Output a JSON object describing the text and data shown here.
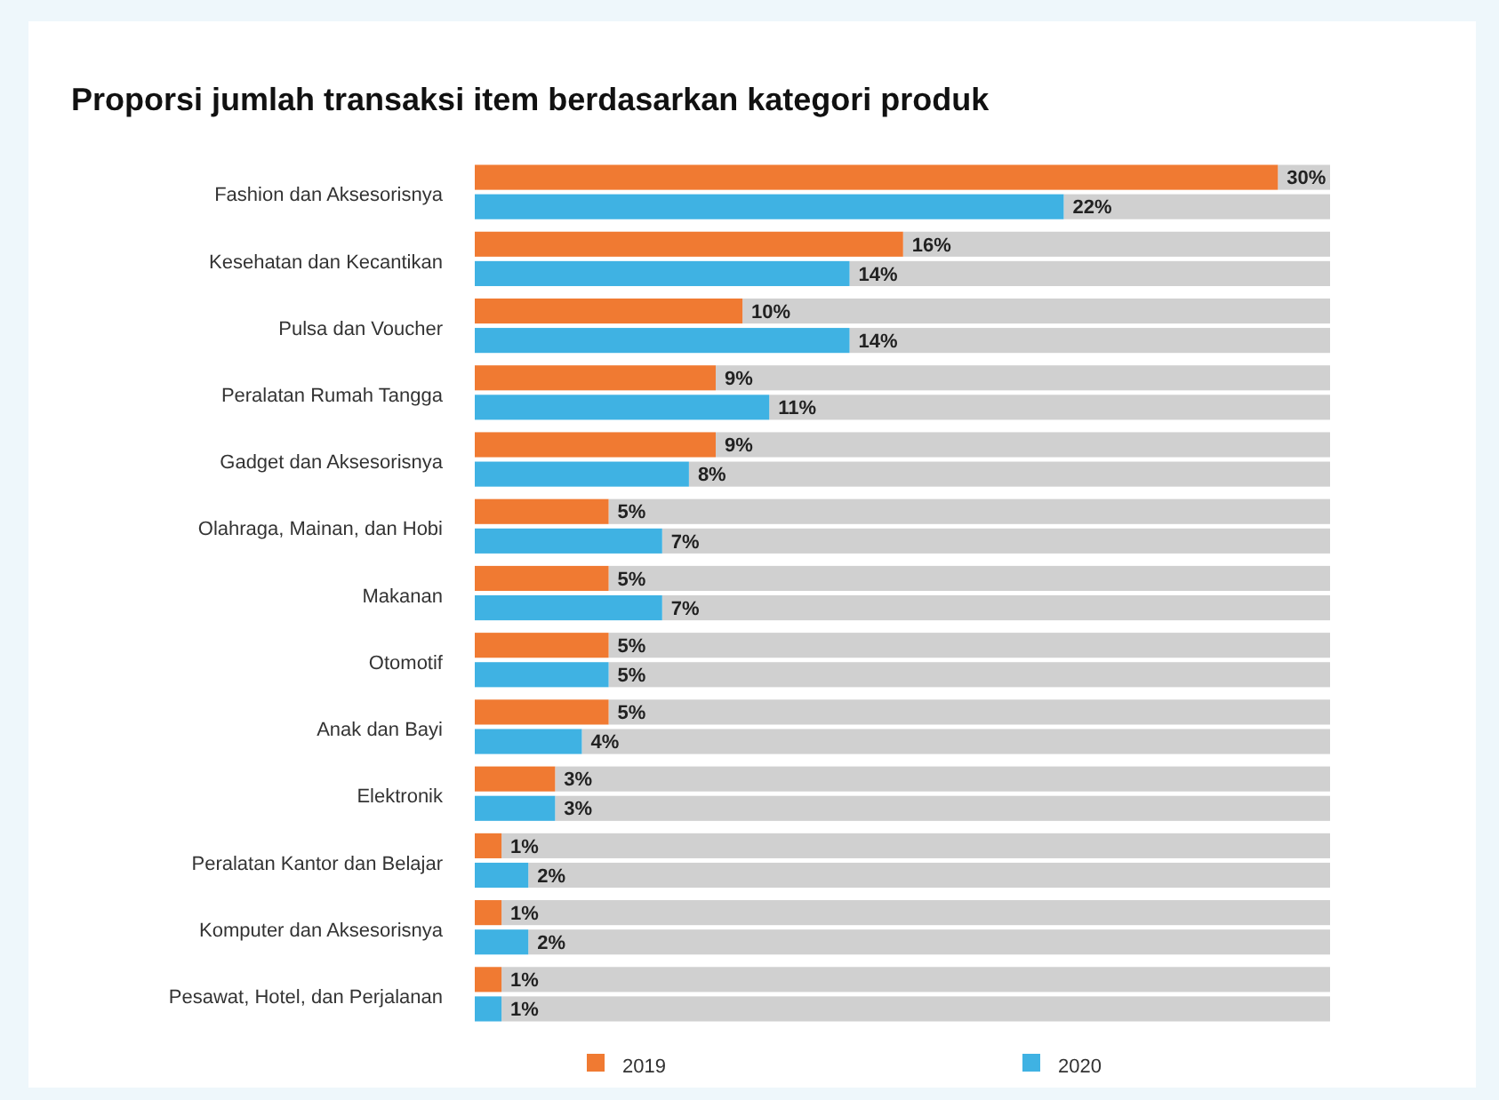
{
  "chart_data": {
    "type": "bar",
    "orientation": "horizontal",
    "title": "Proporsi jumlah transaksi item berdasarkan kategori produk",
    "categories": [
      "Fashion dan Aksesorisnya",
      "Kesehatan dan Kecantikan",
      "Pulsa dan Voucher",
      "Peralatan Rumah Tangga",
      "Gadget dan Aksesorisnya",
      "Olahraga, Mainan, dan Hobi",
      "Makanan",
      "Otomotif",
      "Anak dan Bayi",
      "Elektronik",
      "Peralatan Kantor dan Belajar",
      "Komputer dan Aksesorisnya",
      "Pesawat, Hotel, dan Perjalanan"
    ],
    "series": [
      {
        "name": "2019",
        "color": "#f07a32",
        "values": [
          30,
          16,
          10,
          9,
          9,
          5,
          5,
          5,
          5,
          3,
          1,
          1,
          1
        ],
        "value_labels": [
          "30%",
          "16%",
          "10%",
          "9%",
          "9%",
          "5%",
          "5%",
          "5%",
          "5%",
          "3%",
          "1%",
          "1%",
          "1%"
        ]
      },
      {
        "name": "2020",
        "color": "#3fb2e3",
        "values": [
          22,
          14,
          14,
          11,
          8,
          7,
          7,
          5,
          4,
          3,
          2,
          2,
          1
        ],
        "value_labels": [
          "22%",
          "14%",
          "14%",
          "11%",
          "8%",
          "7%",
          "7%",
          "5%",
          "4%",
          "3%",
          "2%",
          "2%",
          "1%"
        ]
      }
    ],
    "grid": false,
    "legend": "bottom",
    "tick_labels": "y"
  }
}
